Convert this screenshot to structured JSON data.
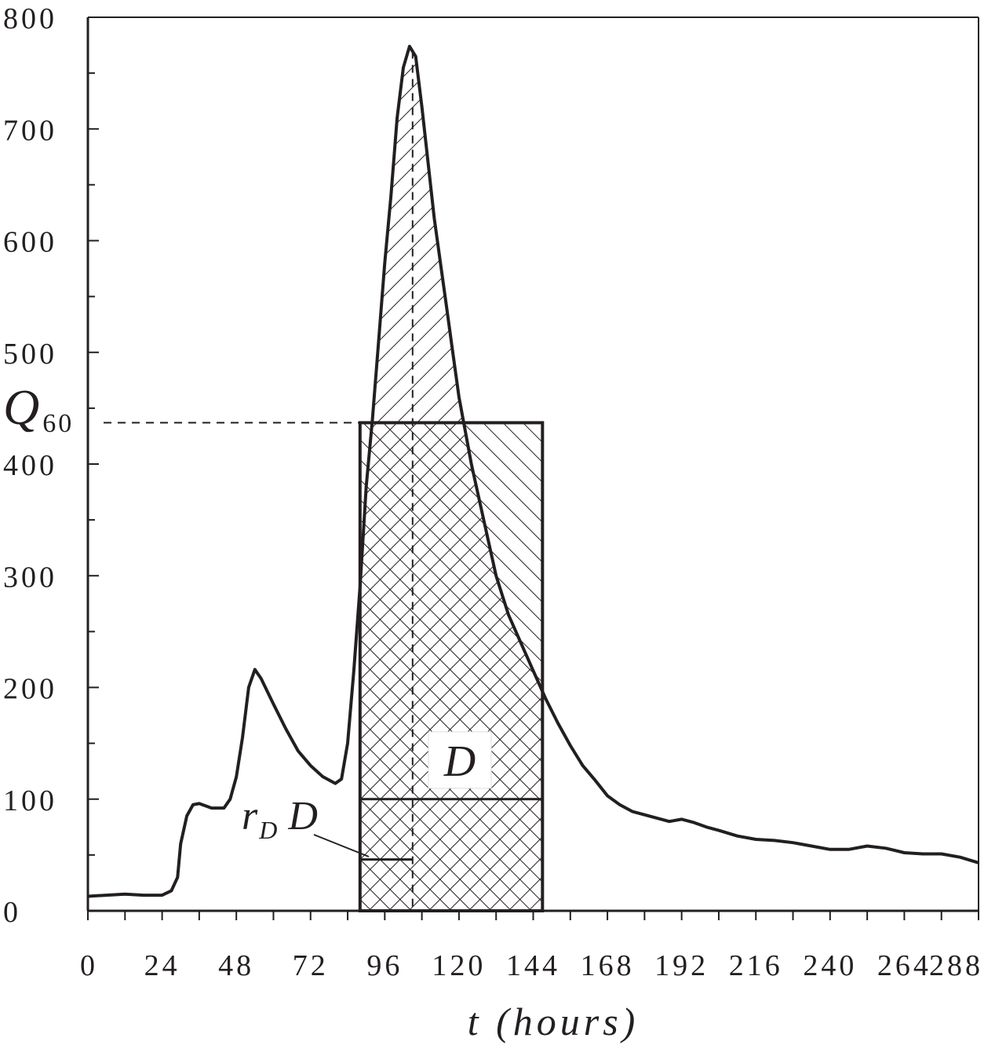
{
  "chart_data": {
    "type": "line",
    "title": "",
    "xlabel": "t (hours)",
    "ylabel": "",
    "xlim": [
      0,
      288
    ],
    "ylim": [
      0,
      800
    ],
    "grid": false,
    "x_ticks": [
      "0",
      "24",
      "48",
      "72",
      "96",
      "120",
      "144",
      "168",
      "192",
      "216",
      "240",
      "264",
      "288"
    ],
    "y_ticks": [
      "0",
      "100",
      "200",
      "300",
      "400",
      "500",
      "600",
      "700",
      "800"
    ],
    "series": [
      {
        "points": [
          [
            0,
            13
          ],
          [
            6,
            14
          ],
          [
            12,
            15
          ],
          [
            18,
            14
          ],
          [
            24,
            14
          ],
          [
            27,
            18
          ],
          [
            29,
            30
          ],
          [
            30,
            60
          ],
          [
            32,
            85
          ],
          [
            34,
            95
          ],
          [
            36,
            96
          ],
          [
            38,
            94
          ],
          [
            40,
            92
          ],
          [
            44,
            92
          ],
          [
            46,
            100
          ],
          [
            48,
            120
          ],
          [
            50,
            155
          ],
          [
            52,
            200
          ],
          [
            54,
            216
          ],
          [
            56,
            208
          ],
          [
            60,
            185
          ],
          [
            64,
            163
          ],
          [
            68,
            143
          ],
          [
            72,
            130
          ],
          [
            76,
            120
          ],
          [
            80,
            114
          ],
          [
            82,
            118
          ],
          [
            84,
            150
          ],
          [
            86,
            215
          ],
          [
            88,
            290
          ],
          [
            90,
            380
          ],
          [
            92,
            440
          ],
          [
            94,
            510
          ],
          [
            96,
            580
          ],
          [
            98,
            640
          ],
          [
            100,
            710
          ],
          [
            102,
            755
          ],
          [
            104,
            774
          ],
          [
            106,
            765
          ],
          [
            108,
            720
          ],
          [
            110,
            670
          ],
          [
            112,
            620
          ],
          [
            114,
            580
          ],
          [
            116,
            540
          ],
          [
            118,
            500
          ],
          [
            120,
            460
          ],
          [
            122,
            430
          ],
          [
            124,
            400
          ],
          [
            128,
            350
          ],
          [
            132,
            300
          ],
          [
            136,
            265
          ],
          [
            140,
            240
          ],
          [
            144,
            215
          ],
          [
            148,
            190
          ],
          [
            152,
            168
          ],
          [
            156,
            148
          ],
          [
            160,
            130
          ],
          [
            164,
            117
          ],
          [
            168,
            103
          ],
          [
            172,
            95
          ],
          [
            176,
            89
          ],
          [
            180,
            86
          ],
          [
            184,
            83
          ],
          [
            188,
            80
          ],
          [
            192,
            82
          ],
          [
            196,
            79
          ],
          [
            200,
            75
          ],
          [
            204,
            72
          ],
          [
            210,
            67
          ],
          [
            216,
            64
          ],
          [
            222,
            63
          ],
          [
            228,
            61
          ],
          [
            234,
            58
          ],
          [
            240,
            55
          ],
          [
            246,
            55
          ],
          [
            252,
            58
          ],
          [
            258,
            56
          ],
          [
            264,
            52
          ],
          [
            270,
            51
          ],
          [
            276,
            51
          ],
          [
            282,
            48
          ],
          [
            288,
            43
          ]
        ]
      }
    ],
    "annotations": {
      "q60_label": "Q",
      "q60_sub": "60",
      "q60_value": 437,
      "d_label": "D",
      "d_value": 100,
      "rd_label_r": "r",
      "rd_label_sub": "D",
      "rd_label_d": "D",
      "rd_value": 46,
      "peak_time": 105,
      "window_start": 88,
      "window_end": 147
    }
  }
}
